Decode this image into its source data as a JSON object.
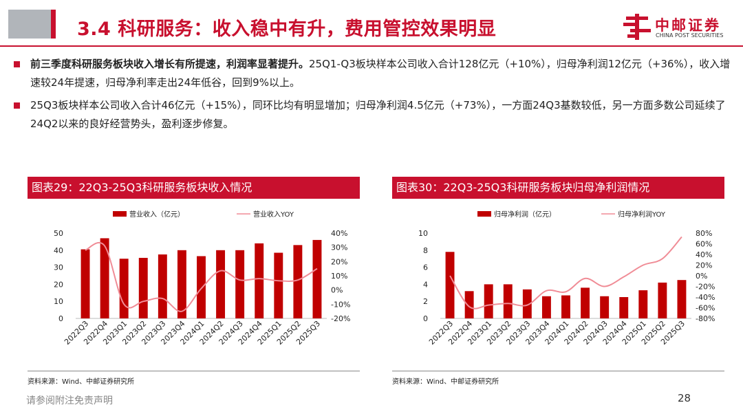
{
  "title": "3.4 科研服务：收入稳中有升，费用管控效果明显",
  "logo": {
    "cn": "中邮证券",
    "en": "CHINA POST SECURITIES"
  },
  "colors": {
    "brand_red": "#c8102e",
    "bar": "#c00000",
    "line": "#f08c96",
    "grey_block": "#b1b5ba"
  },
  "bullets": [
    {
      "bold": "前三季度科研服务板块收入增长有所提速，利润率显著提升。",
      "text": "25Q1-Q3板块样本公司收入合计128亿元（+10%），归母净利润12亿元（+36%），收入增速较24年提速，归母净利率走出24年低谷，回到9%以上。"
    },
    {
      "bold": "",
      "text": "25Q3板块样本公司收入合计46亿元（+15%），同环比均有明显增加；归母净利润4.5亿元（+73%），一方面24Q3基数较低，另一方面多数公司延续了24Q2以来的良好经营势头，盈利逐步修复。"
    }
  ],
  "charts": {
    "left": {
      "heading": "图表29：22Q3-25Q3科研服务板块收入情况",
      "source": "资料来源：Wind、中邮证券研究所"
    },
    "right": {
      "heading": "图表30：22Q3-25Q3科研服务板块归母净利润情况",
      "source": "资料来源：Wind、中邮证券研究所"
    }
  },
  "chart_data": [
    {
      "type": "bar",
      "categories": [
        "2022Q3",
        "2022Q4",
        "2023Q1",
        "2023Q2",
        "2023Q3",
        "2023Q4",
        "2024Q1",
        "2024Q2",
        "2024Q3",
        "2024Q4",
        "2025Q1",
        "2025Q2",
        "2025Q3"
      ],
      "series": [
        {
          "name": "营业收入（亿元）",
          "type": "bar",
          "axis": "left",
          "values": [
            40.5,
            47,
            35,
            35.5,
            37.5,
            40,
            36.5,
            40,
            40,
            44,
            38.5,
            43,
            46
          ]
        },
        {
          "name": "营业收入YOY",
          "type": "line",
          "axis": "right",
          "values": [
            0.28,
            0.31,
            -0.1,
            -0.08,
            -0.06,
            -0.15,
            0.01,
            0.135,
            0.07,
            0.08,
            0.065,
            0.07,
            0.15
          ]
        }
      ],
      "ylim": [
        0,
        50
      ],
      "yticks": [
        0,
        10,
        20,
        30,
        40,
        50
      ],
      "y2lim": [
        -0.2,
        0.4
      ],
      "y2ticks": [
        "-20%",
        "-10%",
        "0%",
        "10%",
        "20%",
        "30%",
        "40%"
      ],
      "legend": "top-center",
      "grid": false
    },
    {
      "type": "bar",
      "categories": [
        "2022Q3",
        "2022Q4",
        "2023Q1",
        "2023Q2",
        "2023Q3",
        "2023Q4",
        "2024Q1",
        "2024Q2",
        "2024Q3",
        "2024Q4",
        "2025Q1",
        "2025Q2",
        "2025Q3"
      ],
      "series": [
        {
          "name": "归母净利润（亿元）",
          "type": "bar",
          "axis": "left",
          "values": [
            7.8,
            3.2,
            4.0,
            4.0,
            3.4,
            2.6,
            2.7,
            3.6,
            2.6,
            2.5,
            3.3,
            4.2,
            4.5
          ]
        },
        {
          "name": "归母净利润YOY",
          "type": "line",
          "axis": "right",
          "values": [
            0.0,
            -0.58,
            -0.55,
            -0.52,
            -0.55,
            -0.28,
            -0.3,
            -0.05,
            -0.2,
            -0.02,
            0.2,
            0.32,
            0.73
          ]
        }
      ],
      "ylim": [
        0,
        10
      ],
      "yticks": [
        0,
        2,
        4,
        6,
        8,
        10
      ],
      "y2lim": [
        -0.8,
        0.8
      ],
      "y2ticks": [
        "-80%",
        "-60%",
        "-40%",
        "-20%",
        "0%",
        "20%",
        "40%",
        "60%",
        "80%"
      ],
      "legend": "top-center",
      "grid": false
    }
  ],
  "footer": {
    "note": "请参阅附注免责声明",
    "page": "28"
  }
}
